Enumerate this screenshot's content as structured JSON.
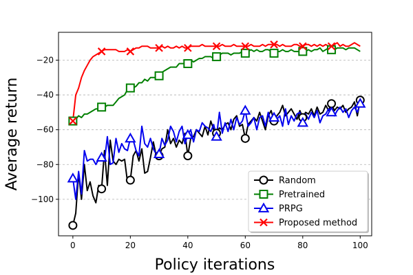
{
  "chart_data": {
    "type": "line",
    "xlabel": "Policy iterations",
    "ylabel": "Average return",
    "xlim": [
      -5,
      104
    ],
    "ylim": [
      -121,
      -4
    ],
    "xticks": [
      0,
      20,
      40,
      60,
      80,
      100
    ],
    "yticks": [
      -100,
      -80,
      -60,
      -40,
      -20
    ],
    "grid": "horizontal-dashed",
    "legend_position": "lower-right",
    "series": [
      {
        "name": "Random",
        "color": "#000000",
        "marker": "circle",
        "marker_x": [
          0,
          10,
          20,
          30,
          40,
          50,
          60,
          70,
          80,
          90,
          100
        ],
        "x": [
          0,
          1,
          2,
          3,
          4,
          5,
          6,
          7,
          8,
          9,
          10,
          11,
          12,
          13,
          14,
          15,
          16,
          17,
          18,
          19,
          20,
          21,
          22,
          23,
          24,
          25,
          26,
          27,
          28,
          29,
          30,
          31,
          32,
          33,
          34,
          35,
          36,
          37,
          38,
          39,
          40,
          41,
          42,
          43,
          44,
          45,
          46,
          47,
          48,
          49,
          50,
          51,
          52,
          53,
          54,
          55,
          56,
          57,
          58,
          59,
          60,
          61,
          62,
          63,
          64,
          65,
          66,
          67,
          68,
          69,
          70,
          71,
          72,
          73,
          74,
          75,
          76,
          77,
          78,
          79,
          80,
          81,
          82,
          83,
          84,
          85,
          86,
          87,
          88,
          89,
          90,
          91,
          92,
          93,
          94,
          95,
          96,
          97,
          98,
          99,
          100
        ],
        "y": [
          -115,
          -108,
          -85,
          -100,
          -80,
          -95,
          -90,
          -98,
          -102,
          -92,
          -94,
          -72,
          -92,
          -66,
          -78,
          -80,
          -77,
          -78,
          -77,
          -90,
          -89,
          -75,
          -72,
          -78,
          -71,
          -85,
          -84,
          -76,
          -67,
          -75,
          -75,
          -71,
          -70,
          -60,
          -68,
          -65,
          -70,
          -66,
          -68,
          -62,
          -75,
          -65,
          -64,
          -60,
          -62,
          -64,
          -58,
          -63,
          -55,
          -60,
          -62,
          -59,
          -60,
          -57,
          -56,
          -60,
          -54,
          -52,
          -58,
          -57,
          -65,
          -57,
          -55,
          -53,
          -55,
          -50,
          -55,
          -60,
          -52,
          -49,
          -55,
          -52,
          -50,
          -46,
          -52,
          -50,
          -48,
          -51,
          -54,
          -49,
          -53,
          -50,
          -51,
          -48,
          -52,
          -47,
          -51,
          -50,
          -46,
          -49,
          -45,
          -49,
          -47,
          -48,
          -46,
          -50,
          -48,
          -47,
          -44,
          -52,
          -43
        ]
      },
      {
        "name": "Pretrained",
        "color": "#007f00",
        "marker": "square",
        "marker_x": [
          0,
          10,
          20,
          30,
          40,
          50,
          60,
          70,
          80,
          90
        ],
        "x": [
          0,
          1,
          2,
          3,
          4,
          5,
          6,
          7,
          8,
          9,
          10,
          11,
          12,
          13,
          14,
          15,
          16,
          17,
          18,
          19,
          20,
          21,
          22,
          23,
          24,
          25,
          26,
          27,
          28,
          29,
          30,
          31,
          32,
          33,
          34,
          35,
          36,
          37,
          38,
          39,
          40,
          41,
          42,
          43,
          44,
          45,
          46,
          47,
          48,
          49,
          50,
          51,
          52,
          53,
          54,
          55,
          56,
          57,
          58,
          59,
          60,
          61,
          62,
          63,
          64,
          65,
          66,
          67,
          68,
          69,
          70,
          71,
          72,
          73,
          74,
          75,
          76,
          77,
          78,
          79,
          80,
          81,
          82,
          83,
          84,
          85,
          86,
          87,
          88,
          89,
          90,
          91,
          92,
          93,
          94,
          95,
          96,
          97,
          98,
          99,
          100
        ],
        "y": [
          -55,
          -54,
          -52,
          -53,
          -51,
          -51,
          -50,
          -49,
          -48,
          -48,
          -47,
          -47,
          -46,
          -46,
          -46,
          -44,
          -42,
          -41,
          -40,
          -37,
          -36,
          -36,
          -35,
          -33,
          -33,
          -31,
          -32,
          -30,
          -30,
          -30,
          -29,
          -27,
          -26,
          -25,
          -24,
          -24,
          -24,
          -22,
          -22,
          -22,
          -22,
          -20,
          -21,
          -20,
          -19,
          -19,
          -18,
          -18,
          -18,
          -19,
          -18,
          -17,
          -16,
          -16,
          -16,
          -17,
          -16,
          -16,
          -16,
          -15,
          -16,
          -15,
          -14,
          -15,
          -14,
          -15,
          -15,
          -14,
          -14,
          -15,
          -16,
          -15,
          -15,
          -14,
          -15,
          -15,
          -14,
          -15,
          -15,
          -15,
          -15,
          -15,
          -14,
          -15,
          -14,
          -14,
          -13,
          -15,
          -14,
          -13,
          -14,
          -14,
          -13,
          -13,
          -13,
          -14,
          -13,
          -13,
          -13,
          -14,
          -15
        ]
      },
      {
        "name": "PRPG",
        "color": "#0000ee",
        "marker": "triangle",
        "marker_x": [
          0,
          10,
          20,
          30,
          40,
          50,
          60,
          70,
          80,
          90,
          100
        ],
        "x": [
          0,
          1,
          2,
          3,
          4,
          5,
          6,
          7,
          8,
          9,
          10,
          11,
          12,
          13,
          14,
          15,
          16,
          17,
          18,
          19,
          20,
          21,
          22,
          23,
          24,
          25,
          26,
          27,
          28,
          29,
          30,
          31,
          32,
          33,
          34,
          35,
          36,
          37,
          38,
          39,
          40,
          41,
          42,
          43,
          44,
          45,
          46,
          47,
          48,
          49,
          50,
          51,
          52,
          53,
          54,
          55,
          56,
          57,
          58,
          59,
          60,
          61,
          62,
          63,
          64,
          65,
          66,
          67,
          68,
          69,
          70,
          71,
          72,
          73,
          74,
          75,
          76,
          77,
          78,
          79,
          80,
          81,
          82,
          83,
          84,
          85,
          86,
          87,
          88,
          89,
          90,
          91,
          92,
          93,
          94,
          95,
          96,
          97,
          98,
          99,
          100
        ],
        "y": [
          -88,
          -100,
          -84,
          -97,
          -72,
          -78,
          -77,
          -77,
          -80,
          -77,
          -76,
          -78,
          -64,
          -80,
          -79,
          -65,
          -73,
          -68,
          -71,
          -72,
          -65,
          -66,
          -72,
          -75,
          -58,
          -68,
          -70,
          -65,
          -71,
          -74,
          -74,
          -65,
          -69,
          -66,
          -58,
          -61,
          -67,
          -61,
          -58,
          -68,
          -63,
          -60,
          -67,
          -60,
          -61,
          -56,
          -58,
          -59,
          -61,
          -57,
          -64,
          -50,
          -62,
          -56,
          -61,
          -54,
          -60,
          -53,
          -57,
          -55,
          -49,
          -58,
          -56,
          -53,
          -60,
          -53,
          -52,
          -58,
          -50,
          -56,
          -53,
          -54,
          -52,
          -58,
          -48,
          -57,
          -52,
          -55,
          -51,
          -50,
          -56,
          -51,
          -54,
          -50,
          -53,
          -49,
          -56,
          -52,
          -51,
          -48,
          -50,
          -52,
          -49,
          -47,
          -50,
          -48,
          -53,
          -49,
          -47,
          -50,
          -45
        ]
      },
      {
        "name": "Proposed method",
        "color": "#ff0000",
        "marker": "x",
        "marker_x": [
          0,
          10,
          20,
          30,
          40,
          50,
          60,
          70,
          80,
          90
        ],
        "x": [
          0,
          1,
          2,
          3,
          4,
          5,
          6,
          7,
          8,
          9,
          10,
          11,
          12,
          13,
          14,
          15,
          16,
          17,
          18,
          19,
          20,
          21,
          22,
          23,
          24,
          25,
          26,
          27,
          28,
          29,
          30,
          31,
          32,
          33,
          34,
          35,
          36,
          37,
          38,
          39,
          40,
          41,
          42,
          43,
          44,
          45,
          46,
          47,
          48,
          49,
          50,
          51,
          52,
          53,
          54,
          55,
          56,
          57,
          58,
          59,
          60,
          61,
          62,
          63,
          64,
          65,
          66,
          67,
          68,
          69,
          70,
          71,
          72,
          73,
          74,
          75,
          76,
          77,
          78,
          79,
          80,
          81,
          82,
          83,
          84,
          85,
          86,
          87,
          88,
          89,
          90,
          91,
          92,
          93,
          94,
          95,
          96,
          97,
          98,
          99,
          100
        ],
        "y": [
          -55,
          -40,
          -36,
          -30,
          -26,
          -23,
          -20,
          -18,
          -17,
          -16,
          -15,
          -14,
          -14,
          -14,
          -14,
          -14,
          -15,
          -15,
          -15,
          -14,
          -15,
          -14,
          -13,
          -13,
          -12,
          -12,
          -12,
          -13,
          -13,
          -13,
          -13,
          -12,
          -13,
          -12,
          -13,
          -13,
          -12,
          -13,
          -12,
          -13,
          -13,
          -12,
          -12,
          -12,
          -12,
          -11,
          -12,
          -12,
          -12,
          -12,
          -12,
          -12,
          -11,
          -12,
          -12,
          -12,
          -11,
          -12,
          -12,
          -12,
          -12,
          -12,
          -11,
          -12,
          -12,
          -12,
          -11,
          -12,
          -11,
          -11,
          -11,
          -11,
          -12,
          -11,
          -12,
          -12,
          -12,
          -11,
          -11,
          -12,
          -12,
          -11,
          -11,
          -12,
          -11,
          -12,
          -11,
          -12,
          -11,
          -12,
          -12,
          -11,
          -10,
          -12,
          -11,
          -12,
          -12,
          -11,
          -10,
          -11,
          -12
        ]
      }
    ]
  }
}
